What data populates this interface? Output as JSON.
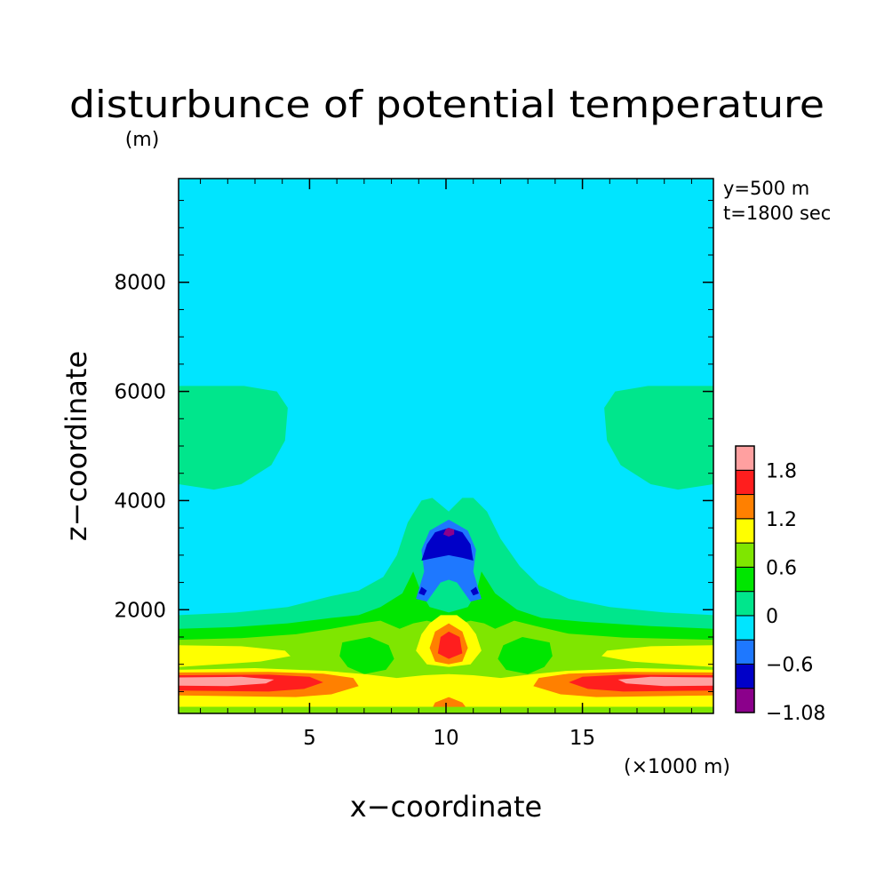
{
  "chart_data": {
    "type": "heatmap",
    "title": "disturbunce of potential temperature",
    "ylabel_unit": "(m)",
    "xlabel": "x−coordinate",
    "ylabel": "z−coordinate",
    "x_unit": "(×1000 m)",
    "annotations": [
      "y=500 m",
      "t=1800 sec"
    ],
    "xlim": [
      0.2,
      19.8
    ],
    "ylim": [
      100,
      9900
    ],
    "x_ticks": [
      5,
      10,
      15
    ],
    "y_ticks": [
      2000,
      4000,
      6000,
      8000
    ],
    "colorbar": {
      "levels": [
        -1.08,
        -0.8,
        -0.6,
        -0.3,
        0,
        0.3,
        0.6,
        0.9,
        1.2,
        1.5,
        1.8,
        2.1
      ],
      "labels": [
        {
          "value": 1.8,
          "text": "1.8"
        },
        {
          "value": 1.2,
          "text": "1.2"
        },
        {
          "value": 0.6,
          "text": "0.6"
        },
        {
          "value": 0,
          "text": "0"
        },
        {
          "value": -0.6,
          "text": "−0.6"
        },
        {
          "value": -1.08,
          "text": "−1.08"
        }
      ],
      "colors": [
        "#8b008b",
        "#0000c8",
        "#1e78ff",
        "#00e5ff",
        "#00e68c",
        "#00e600",
        "#7fe600",
        "#ffff00",
        "#ff8000",
        "#ff1e1e",
        "#ffa0a0"
      ]
    },
    "regions": [
      {
        "level": 3,
        "points": [
          [
            0.2,
            100
          ],
          [
            19.8,
            100
          ],
          [
            19.8,
            9900
          ],
          [
            0.2,
            9900
          ]
        ]
      },
      {
        "level": 4,
        "points": [
          [
            0.2,
            1900
          ],
          [
            2.3,
            1950
          ],
          [
            4.2,
            2050
          ],
          [
            5.8,
            2250
          ],
          [
            6.8,
            2350
          ],
          [
            7.7,
            2600
          ],
          [
            8.2,
            3000
          ],
          [
            8.6,
            3600
          ],
          [
            9.1,
            4000
          ],
          [
            9.5,
            4050
          ],
          [
            10.1,
            3800
          ],
          [
            10.6,
            4050
          ],
          [
            11,
            4050
          ],
          [
            11.5,
            3800
          ],
          [
            12,
            3300
          ],
          [
            12.7,
            2800
          ],
          [
            13.4,
            2450
          ],
          [
            14.5,
            2200
          ],
          [
            16,
            2050
          ],
          [
            18,
            1950
          ],
          [
            19.8,
            1900
          ],
          [
            19.8,
            100
          ],
          [
            0.2,
            100
          ]
        ]
      },
      {
        "level": 4,
        "points": [
          [
            0.2,
            6100
          ],
          [
            2.6,
            6100
          ],
          [
            3.8,
            6000
          ],
          [
            4.2,
            5700
          ],
          [
            4.1,
            5100
          ],
          [
            3.6,
            4650
          ],
          [
            2.5,
            4300
          ],
          [
            1.5,
            4200
          ],
          [
            0.2,
            4300
          ]
        ]
      },
      {
        "level": 4,
        "points": [
          [
            19.8,
            6100
          ],
          [
            17.4,
            6100
          ],
          [
            16.2,
            6000
          ],
          [
            15.8,
            5700
          ],
          [
            15.9,
            5100
          ],
          [
            16.4,
            4650
          ],
          [
            17.5,
            4300
          ],
          [
            18.5,
            4200
          ],
          [
            19.8,
            4300
          ]
        ]
      },
      {
        "level": 5,
        "points": [
          [
            0.2,
            1650
          ],
          [
            2.2,
            1680
          ],
          [
            4.2,
            1750
          ],
          [
            5.8,
            1850
          ],
          [
            6.8,
            1900
          ],
          [
            7.6,
            2050
          ],
          [
            8.4,
            2300
          ],
          [
            8.8,
            2700
          ],
          [
            9.1,
            2300
          ],
          [
            9.4,
            2050
          ],
          [
            10.1,
            1950
          ],
          [
            10.8,
            2050
          ],
          [
            11.1,
            2300
          ],
          [
            11.3,
            2700
          ],
          [
            11.8,
            2300
          ],
          [
            12.6,
            2000
          ],
          [
            13.5,
            1850
          ],
          [
            15,
            1780
          ],
          [
            17.5,
            1700
          ],
          [
            19.8,
            1650
          ],
          [
            19.8,
            100
          ],
          [
            0.2,
            100
          ]
        ]
      },
      {
        "level": 6,
        "points": [
          [
            0.2,
            1450
          ],
          [
            2.5,
            1480
          ],
          [
            4.5,
            1550
          ],
          [
            5.8,
            1650
          ],
          [
            6.9,
            1750
          ],
          [
            7.6,
            1800
          ],
          [
            8.3,
            1650
          ],
          [
            8.8,
            1750
          ],
          [
            9.3,
            1800
          ],
          [
            10.1,
            1700
          ],
          [
            10.9,
            1800
          ],
          [
            11.4,
            1750
          ],
          [
            11.8,
            1650
          ],
          [
            12.5,
            1800
          ],
          [
            13.3,
            1700
          ],
          [
            14.5,
            1560
          ],
          [
            16.5,
            1490
          ],
          [
            19.8,
            1450
          ],
          [
            19.8,
            100
          ],
          [
            0.2,
            100
          ]
        ]
      },
      {
        "level": 5,
        "points": [
          [
            6.2,
            1400
          ],
          [
            7.2,
            1500
          ],
          [
            7.9,
            1350
          ],
          [
            8.1,
            1100
          ],
          [
            7.8,
            900
          ],
          [
            7,
            820
          ],
          [
            6.4,
            950
          ],
          [
            6.1,
            1150
          ]
        ]
      },
      {
        "level": 5,
        "points": [
          [
            13.8,
            1400
          ],
          [
            12.8,
            1500
          ],
          [
            12.1,
            1350
          ],
          [
            11.9,
            1100
          ],
          [
            12.2,
            900
          ],
          [
            13,
            820
          ],
          [
            13.6,
            950
          ],
          [
            13.9,
            1150
          ]
        ]
      },
      {
        "level": 7,
        "points": [
          [
            0.2,
            1350
          ],
          [
            2.5,
            1330
          ],
          [
            4.1,
            1250
          ],
          [
            4.3,
            1150
          ],
          [
            3.2,
            1050
          ],
          [
            0.2,
            950
          ]
        ]
      },
      {
        "level": 7,
        "points": [
          [
            19.8,
            1350
          ],
          [
            17.5,
            1330
          ],
          [
            15.9,
            1250
          ],
          [
            15.7,
            1150
          ],
          [
            16.8,
            1050
          ],
          [
            19.8,
            950
          ]
        ]
      },
      {
        "level": 7,
        "points": [
          [
            9.1,
            1550
          ],
          [
            9.4,
            1750
          ],
          [
            9.8,
            1900
          ],
          [
            10.4,
            1900
          ],
          [
            10.8,
            1750
          ],
          [
            11.1,
            1550
          ],
          [
            11.3,
            1250
          ],
          [
            10.9,
            1000
          ],
          [
            10.1,
            950
          ],
          [
            9.3,
            1000
          ],
          [
            8.9,
            1250
          ]
        ]
      },
      {
        "level": 7,
        "points": [
          [
            0.2,
            900
          ],
          [
            3,
            930
          ],
          [
            5.6,
            880
          ],
          [
            7,
            820
          ],
          [
            8.2,
            750
          ],
          [
            9.2,
            800
          ],
          [
            10.1,
            820
          ],
          [
            11,
            800
          ],
          [
            12,
            750
          ],
          [
            13.2,
            820
          ],
          [
            14.4,
            880
          ],
          [
            17,
            930
          ],
          [
            19.8,
            900
          ],
          [
            19.8,
            220
          ],
          [
            0.2,
            220
          ]
        ]
      },
      {
        "level": 8,
        "points": [
          [
            9.4,
            1300
          ],
          [
            9.6,
            1600
          ],
          [
            10.1,
            1750
          ],
          [
            10.6,
            1600
          ],
          [
            10.8,
            1300
          ],
          [
            10.6,
            1050
          ],
          [
            10.1,
            1000
          ],
          [
            9.6,
            1050
          ]
        ]
      },
      {
        "level": 9,
        "points": [
          [
            9.7,
            1200
          ],
          [
            9.8,
            1500
          ],
          [
            10.1,
            1600
          ],
          [
            10.5,
            1500
          ],
          [
            10.6,
            1200
          ],
          [
            10.1,
            1100
          ]
        ]
      },
      {
        "level": 8,
        "points": [
          [
            0.2,
            850
          ],
          [
            3.5,
            860
          ],
          [
            5.5,
            830
          ],
          [
            6.6,
            750
          ],
          [
            6.8,
            600
          ],
          [
            5.8,
            450
          ],
          [
            4.5,
            400
          ],
          [
            0.2,
            430
          ]
        ]
      },
      {
        "level": 8,
        "points": [
          [
            19.8,
            850
          ],
          [
            16.5,
            860
          ],
          [
            14.5,
            830
          ],
          [
            13.4,
            750
          ],
          [
            13.2,
            600
          ],
          [
            14.2,
            450
          ],
          [
            15.5,
            400
          ],
          [
            19.8,
            430
          ]
        ]
      },
      {
        "level": 9,
        "points": [
          [
            0.2,
            800
          ],
          [
            3.5,
            810
          ],
          [
            5,
            770
          ],
          [
            5.5,
            670
          ],
          [
            4.8,
            550
          ],
          [
            3.5,
            500
          ],
          [
            0.2,
            520
          ]
        ]
      },
      {
        "level": 9,
        "points": [
          [
            19.8,
            800
          ],
          [
            16.5,
            810
          ],
          [
            15,
            770
          ],
          [
            14.5,
            670
          ],
          [
            15.2,
            550
          ],
          [
            16.5,
            500
          ],
          [
            19.8,
            520
          ]
        ]
      },
      {
        "level": 10,
        "points": [
          [
            0.2,
            760
          ],
          [
            2.5,
            770
          ],
          [
            3.7,
            720
          ],
          [
            3.4,
            650
          ],
          [
            2,
            600
          ],
          [
            0.2,
            610
          ]
        ]
      },
      {
        "level": 10,
        "points": [
          [
            19.8,
            760
          ],
          [
            17.5,
            770
          ],
          [
            16.3,
            720
          ],
          [
            16.6,
            650
          ],
          [
            18,
            600
          ],
          [
            19.8,
            610
          ]
        ]
      },
      {
        "level": 8,
        "points": [
          [
            9.4,
            100
          ],
          [
            9.6,
            300
          ],
          [
            10.1,
            400
          ],
          [
            10.6,
            300
          ],
          [
            10.9,
            100
          ]
        ]
      },
      {
        "level": 6,
        "points": [
          [
            0.2,
            220
          ],
          [
            19.8,
            220
          ],
          [
            19.8,
            100
          ],
          [
            0.2,
            100
          ]
        ]
      },
      {
        "level": 2,
        "points": [
          [
            8.9,
            2200
          ],
          [
            9.2,
            2700
          ],
          [
            9.1,
            3100
          ],
          [
            9.4,
            3450
          ],
          [
            10.1,
            3650
          ],
          [
            10.8,
            3450
          ],
          [
            11.1,
            3100
          ],
          [
            11,
            2700
          ],
          [
            11.3,
            2200
          ],
          [
            10.9,
            2150
          ],
          [
            10.4,
            2500
          ],
          [
            10.1,
            2550
          ],
          [
            9.8,
            2500
          ],
          [
            9.3,
            2150
          ]
        ]
      },
      {
        "level": 1,
        "points": [
          [
            9.1,
            2900
          ],
          [
            9.3,
            3200
          ],
          [
            9.6,
            3420
          ],
          [
            10.1,
            3500
          ],
          [
            10.6,
            3420
          ],
          [
            10.9,
            3200
          ],
          [
            11,
            2900
          ],
          [
            10.6,
            2950
          ],
          [
            10.1,
            3000
          ],
          [
            9.6,
            2950
          ]
        ]
      },
      {
        "level": 0,
        "points": [
          [
            9.9,
            3380
          ],
          [
            10,
            3480
          ],
          [
            10.1,
            3500
          ],
          [
            10.3,
            3470
          ],
          [
            10.3,
            3380
          ],
          [
            10.1,
            3340
          ]
        ]
      },
      {
        "level": 1,
        "points": [
          [
            9,
            2300
          ],
          [
            9.1,
            2420
          ],
          [
            9.3,
            2350
          ],
          [
            9.2,
            2260
          ]
        ]
      },
      {
        "level": 1,
        "points": [
          [
            11.2,
            2300
          ],
          [
            11.1,
            2420
          ],
          [
            10.9,
            2350
          ],
          [
            11,
            2260
          ]
        ]
      }
    ]
  }
}
